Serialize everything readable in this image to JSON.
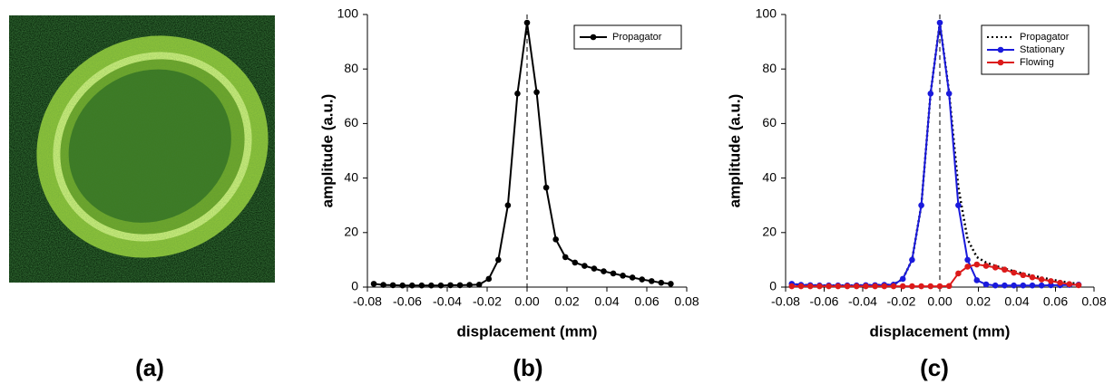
{
  "panel_labels": [
    "(a)",
    "(b)",
    "(c)"
  ],
  "chart_data": [
    {
      "type": "line",
      "xlabel": "displacement (mm)",
      "ylabel": "amplitude (a.u.)",
      "x": [
        -0.0768,
        -0.072,
        -0.0672,
        -0.0624,
        -0.0576,
        -0.0528,
        -0.048,
        -0.0432,
        -0.0384,
        -0.0336,
        -0.0288,
        -0.024,
        -0.0192,
        -0.0144,
        -0.0096,
        -0.0048,
        0,
        0.0048,
        0.0096,
        0.0144,
        0.0192,
        0.024,
        0.0288,
        0.0336,
        0.0384,
        0.0432,
        0.048,
        0.0528,
        0.0576,
        0.0624,
        0.0672,
        0.072
      ],
      "series": [
        {
          "name": "Propagator",
          "color": "#000000",
          "style": "solid",
          "markers": true,
          "values": [
            1.2,
            0.8,
            0.7,
            0.6,
            0.6,
            0.6,
            0.6,
            0.6,
            0.7,
            0.7,
            0.8,
            0.9,
            3,
            10,
            30,
            71,
            97,
            71.5,
            36.5,
            17.5,
            11,
            9,
            7.8,
            6.8,
            5.8,
            5,
            4.2,
            3.5,
            2.8,
            2.2,
            1.6,
            1.2
          ]
        }
      ],
      "xlim": [
        -0.08,
        0.08
      ],
      "xticks": [
        -0.08,
        -0.06,
        -0.04,
        -0.02,
        {
          "value": 0,
          "label": "0.00"
        },
        0.02,
        0.04,
        0.06,
        0.08
      ],
      "ylim": [
        0,
        100
      ],
      "yticks": [
        0,
        20,
        40,
        60,
        80,
        100
      ],
      "zero_line": true,
      "legend": "upper right",
      "grid": false
    },
    {
      "type": "line",
      "xlabel": "displacement (mm)",
      "ylabel": "amplitude (a.u.)",
      "x": [
        -0.0768,
        -0.072,
        -0.0672,
        -0.0624,
        -0.0576,
        -0.0528,
        -0.048,
        -0.0432,
        -0.0384,
        -0.0336,
        -0.0288,
        -0.024,
        -0.0192,
        -0.0144,
        -0.0096,
        -0.0048,
        0,
        0.0048,
        0.0096,
        0.0144,
        0.0192,
        0.024,
        0.0288,
        0.0336,
        0.0384,
        0.0432,
        0.048,
        0.0528,
        0.0576,
        0.0624,
        0.0672,
        0.072
      ],
      "series": [
        {
          "name": "Propagator",
          "color": "#000000",
          "style": "dotted",
          "markers": false,
          "values": [
            1.2,
            0.8,
            0.7,
            0.6,
            0.6,
            0.6,
            0.6,
            0.6,
            0.7,
            0.7,
            0.8,
            0.9,
            3,
            10,
            30,
            71,
            97,
            71.5,
            36.5,
            17.5,
            11,
            9,
            7.8,
            6.8,
            5.8,
            5,
            4.2,
            3.5,
            2.8,
            2.2,
            1.6,
            1.2
          ]
        },
        {
          "name": "Stationary",
          "color": "#1a1adc",
          "style": "solid",
          "markers": true,
          "values": [
            1.2,
            0.8,
            0.7,
            0.6,
            0.6,
            0.6,
            0.6,
            0.6,
            0.7,
            0.7,
            0.8,
            0.9,
            3,
            10,
            30,
            71,
            97,
            71,
            30,
            10,
            2.5,
            1,
            0.6,
            0.6,
            0.6,
            0.6,
            0.6,
            0.6,
            0.7,
            0.7,
            0.8,
            0.9
          ]
        },
        {
          "name": "Flowing",
          "color": "#dc1a1a",
          "style": "solid",
          "markers": true,
          "values": [
            0.3,
            0.3,
            0.3,
            0.3,
            0.3,
            0.3,
            0.3,
            0.3,
            0.3,
            0.3,
            0.3,
            0.3,
            0.3,
            0.3,
            0.3,
            0.3,
            0.3,
            0.4,
            5,
            7.5,
            8.3,
            7.8,
            7.2,
            6.4,
            5.3,
            4.4,
            3.6,
            2.8,
            2.2,
            1.6,
            1.1,
            0.7
          ]
        }
      ],
      "xlim": [
        -0.08,
        0.08
      ],
      "xticks": [
        -0.08,
        -0.06,
        -0.04,
        -0.02,
        {
          "value": 0,
          "label": "0.00"
        },
        0.02,
        0.04,
        0.06,
        0.08
      ],
      "ylim": [
        0,
        100
      ],
      "yticks": [
        0,
        20,
        40,
        60,
        80,
        100
      ],
      "zero_line": true,
      "legend": "upper right",
      "grid": false
    }
  ]
}
